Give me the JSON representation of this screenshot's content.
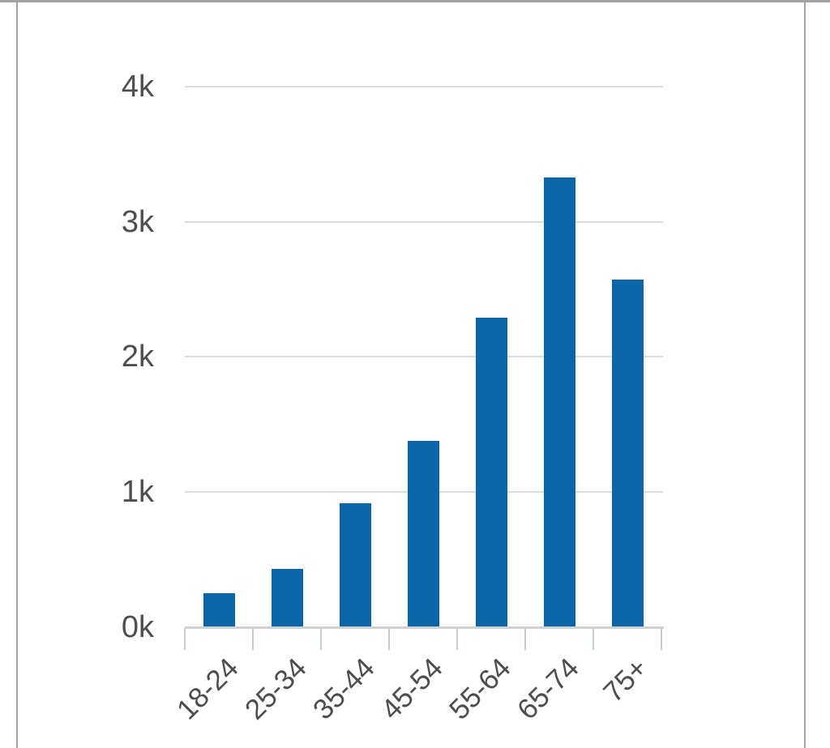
{
  "chart_data": {
    "type": "bar",
    "title": "",
    "xlabel": "",
    "ylabel": "",
    "categories": [
      "18-24",
      "25-34",
      "35-44",
      "45-54",
      "55-64",
      "65-74",
      "75+"
    ],
    "values": [
      250,
      430,
      920,
      1380,
      2290,
      3330,
      2570
    ],
    "ylim": [
      0,
      4000
    ],
    "y_ticks": [
      0,
      1000,
      2000,
      3000,
      4000
    ],
    "y_tick_labels": [
      "0k",
      "1k",
      "2k",
      "3k",
      "4k"
    ],
    "grid": true,
    "legend": false,
    "colors": {
      "bar": "#0d65a9",
      "gridline": "#dcdcdc",
      "axis_line": "#d1d1d1",
      "tick": "#c5ced4",
      "label_text": "#4e4e4e",
      "frame_border": "#a3a3a3",
      "background": "#ffffff"
    }
  }
}
